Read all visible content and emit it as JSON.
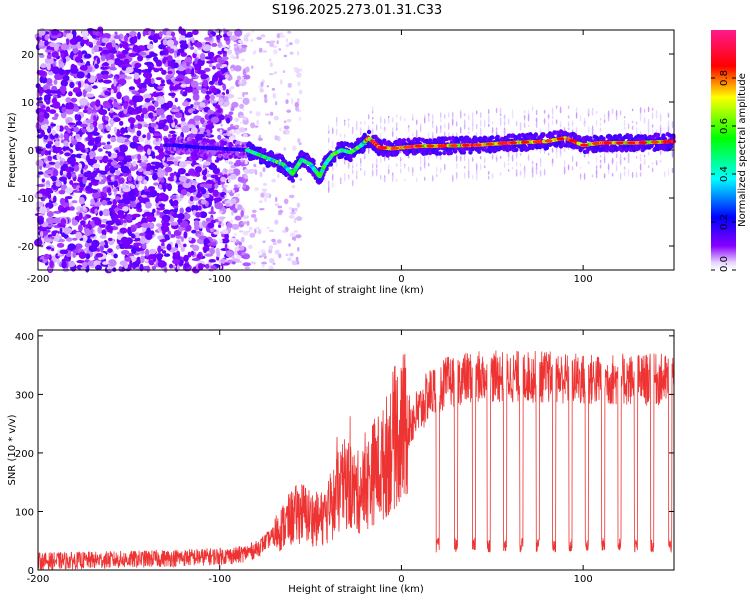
{
  "chart_data": [
    {
      "type": "heatmap",
      "title": "S196.2025.273.01.31.C33",
      "xlabel": "Height of straight line (km)",
      "ylabel": "Frequency (Hz)",
      "xlim": [
        -200,
        150
      ],
      "ylim": [
        -25,
        25
      ],
      "xticks": [
        -200,
        -100,
        0,
        100
      ],
      "yticks": [
        -20,
        -10,
        0,
        10,
        20
      ],
      "colorbar": {
        "label": "Normalized spectral amplitude",
        "range": [
          0,
          1
        ],
        "ticks": [
          "0.0",
          "0.2",
          "0.4",
          "0.6",
          "0.8"
        ]
      },
      "ridge": {
        "description_points_x": [
          -125,
          -110,
          -85,
          -75,
          -65,
          -60,
          -55,
          -50,
          -45,
          -42,
          -38,
          -33,
          -28,
          -22,
          -18,
          -12,
          -5,
          0,
          10,
          40,
          60,
          80,
          90,
          100,
          110,
          130,
          150
        ],
        "description_points_y": [
          1,
          0.5,
          0,
          -1.5,
          -3,
          -5,
          -2,
          -3,
          -5.5,
          -3,
          -1,
          0,
          -0.5,
          1,
          2.5,
          0.5,
          0.3,
          0.5,
          0.8,
          1.0,
          1.5,
          1.8,
          2.5,
          1.0,
          1.5,
          1.5,
          1.8
        ]
      }
    },
    {
      "type": "line",
      "xlabel": "Height of straight line (km)",
      "ylabel": "SNR (10 * v/v)",
      "xlim": [
        -200,
        150
      ],
      "ylim": [
        0,
        410
      ],
      "xticks": [
        -200,
        -100,
        0,
        100
      ],
      "yticks": [
        0,
        100,
        200,
        300,
        400
      ],
      "series": [
        {
          "name": "SNR",
          "color": "#ee3333",
          "envelope_x": [
            -200,
            -150,
            -110,
            -90,
            -80,
            -70,
            -60,
            -55,
            -50,
            -45,
            -40,
            -35,
            -30,
            -25,
            -20,
            -15,
            -10,
            -5,
            0,
            10,
            15,
            20,
            25,
            30,
            40,
            50,
            60,
            80,
            100,
            120,
            140,
            150
          ],
          "envelope_mean": [
            15,
            18,
            22,
            25,
            35,
            60,
            90,
            100,
            90,
            85,
            100,
            130,
            150,
            130,
            140,
            170,
            180,
            220,
            240,
            270,
            300,
            310,
            320,
            325,
            330,
            330,
            330,
            330,
            325,
            325,
            325,
            325
          ],
          "dips_x": [
            20,
            30,
            40,
            48,
            57,
            66,
            75,
            84,
            93,
            102,
            111,
            120,
            129,
            138,
            148
          ],
          "dip_value": 30
        }
      ]
    }
  ]
}
